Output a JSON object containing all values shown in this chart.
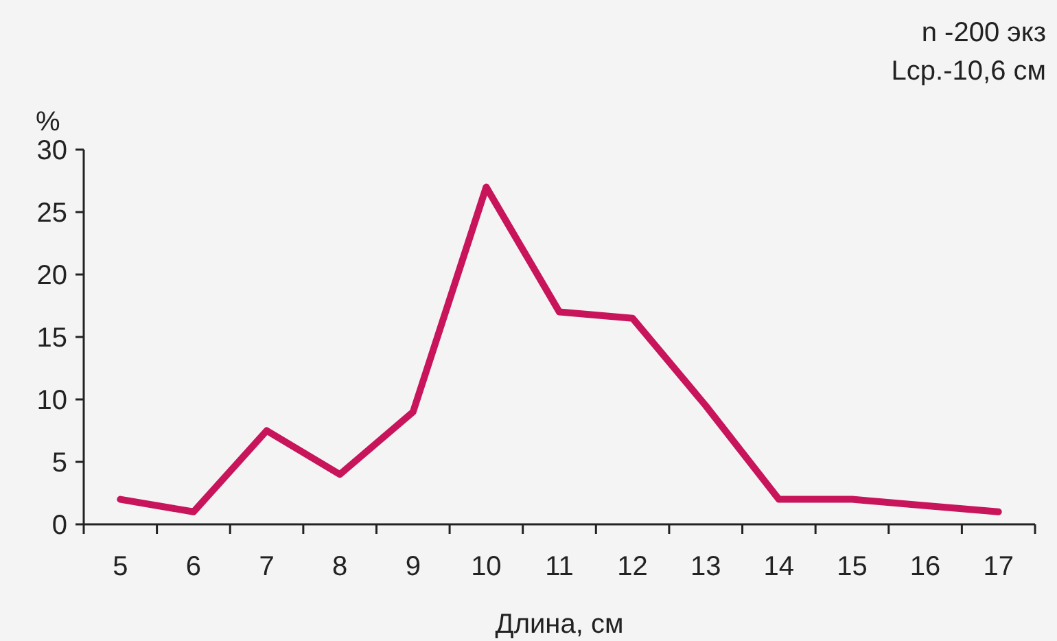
{
  "chart_data": {
    "type": "line",
    "categories": [
      "5",
      "6",
      "7",
      "8",
      "9",
      "10",
      "11",
      "12",
      "13",
      "14",
      "15",
      "16",
      "17"
    ],
    "series": [
      {
        "color": "#c8145a",
        "values": [
          2,
          1,
          7.5,
          4,
          9,
          27,
          17,
          16.5,
          9.5,
          2,
          2,
          1.5,
          1
        ]
      }
    ],
    "ylim": [
      0,
      30
    ],
    "yticks": [
      0,
      5,
      10,
      15,
      20,
      25,
      30
    ],
    "ylabel": "%",
    "xlabel": "Длина, см",
    "grid": false,
    "marker": "none",
    "line_style": "solid",
    "annotations": [
      "n -200 экз",
      "Lср.-10,6 см"
    ]
  }
}
